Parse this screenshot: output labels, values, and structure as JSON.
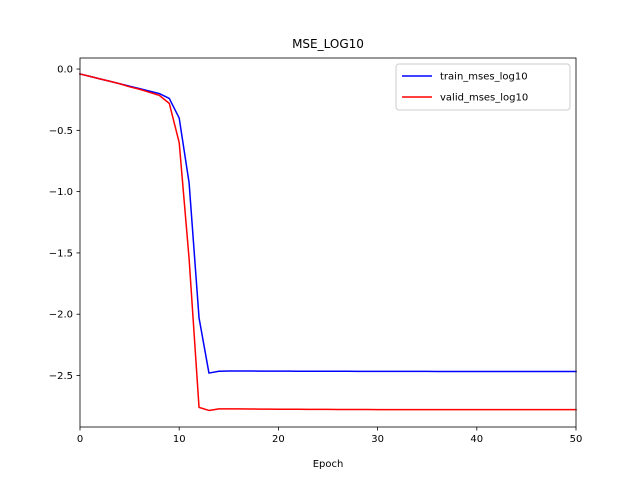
{
  "chart_data": {
    "type": "line",
    "title": "MSE_LOG10",
    "xlabel": "Epoch",
    "ylabel": "",
    "xlim": [
      0,
      50
    ],
    "ylim": [
      -2.92,
      0.09
    ],
    "x_ticks": [
      0,
      10,
      20,
      30,
      40,
      50
    ],
    "y_ticks": [
      0.0,
      -0.5,
      -1.0,
      -1.5,
      -2.0,
      -2.5
    ],
    "x_tick_labels": [
      "0",
      "10",
      "20",
      "30",
      "40",
      "50"
    ],
    "y_tick_labels": [
      "0.0",
      "−0.5",
      "−1.0",
      "−1.5",
      "−2.0",
      "−2.5"
    ],
    "grid": false,
    "legend_position": "top-right",
    "series": [
      {
        "name": "train_mses_log10",
        "color": "#0000ff",
        "x": [
          0,
          1,
          2,
          3,
          4,
          5,
          6,
          7,
          8,
          9,
          10,
          11,
          12,
          13,
          14,
          15,
          16,
          17,
          18,
          19,
          20,
          21,
          22,
          23,
          24,
          25,
          26,
          27,
          28,
          29,
          30,
          31,
          32,
          33,
          34,
          35,
          36,
          37,
          38,
          39,
          40,
          41,
          42,
          43,
          44,
          45,
          46,
          47,
          48,
          49,
          50
        ],
        "y": [
          -0.04,
          -0.06,
          -0.08,
          -0.1,
          -0.12,
          -0.14,
          -0.16,
          -0.18,
          -0.2,
          -0.24,
          -0.4,
          -0.93,
          -2.03,
          -2.48,
          -2.465,
          -2.463,
          -2.463,
          -2.463,
          -2.464,
          -2.464,
          -2.464,
          -2.464,
          -2.465,
          -2.465,
          -2.465,
          -2.465,
          -2.465,
          -2.465,
          -2.466,
          -2.466,
          -2.466,
          -2.466,
          -2.466,
          -2.466,
          -2.466,
          -2.466,
          -2.467,
          -2.467,
          -2.467,
          -2.467,
          -2.467,
          -2.467,
          -2.467,
          -2.467,
          -2.467,
          -2.467,
          -2.467,
          -2.467,
          -2.467,
          -2.467,
          -2.467
        ]
      },
      {
        "name": "valid_mses_log10",
        "color": "#ff0000",
        "x": [
          0,
          1,
          2,
          3,
          4,
          5,
          6,
          7,
          8,
          9,
          10,
          11,
          12,
          13,
          14,
          15,
          16,
          17,
          18,
          19,
          20,
          21,
          22,
          23,
          24,
          25,
          26,
          27,
          28,
          29,
          30,
          31,
          32,
          33,
          34,
          35,
          36,
          37,
          38,
          39,
          40,
          41,
          42,
          43,
          44,
          45,
          46,
          47,
          48,
          49,
          50
        ],
        "y": [
          -0.04,
          -0.06,
          -0.08,
          -0.1,
          -0.12,
          -0.145,
          -0.165,
          -0.19,
          -0.215,
          -0.28,
          -0.6,
          -1.55,
          -2.76,
          -2.785,
          -2.772,
          -2.772,
          -2.772,
          -2.773,
          -2.774,
          -2.774,
          -2.775,
          -2.775,
          -2.775,
          -2.776,
          -2.776,
          -2.776,
          -2.777,
          -2.777,
          -2.777,
          -2.777,
          -2.778,
          -2.778,
          -2.778,
          -2.778,
          -2.778,
          -2.778,
          -2.778,
          -2.778,
          -2.778,
          -2.778,
          -2.778,
          -2.778,
          -2.778,
          -2.778,
          -2.778,
          -2.778,
          -2.778,
          -2.778,
          -2.778,
          -2.778,
          -2.778
        ]
      }
    ]
  }
}
